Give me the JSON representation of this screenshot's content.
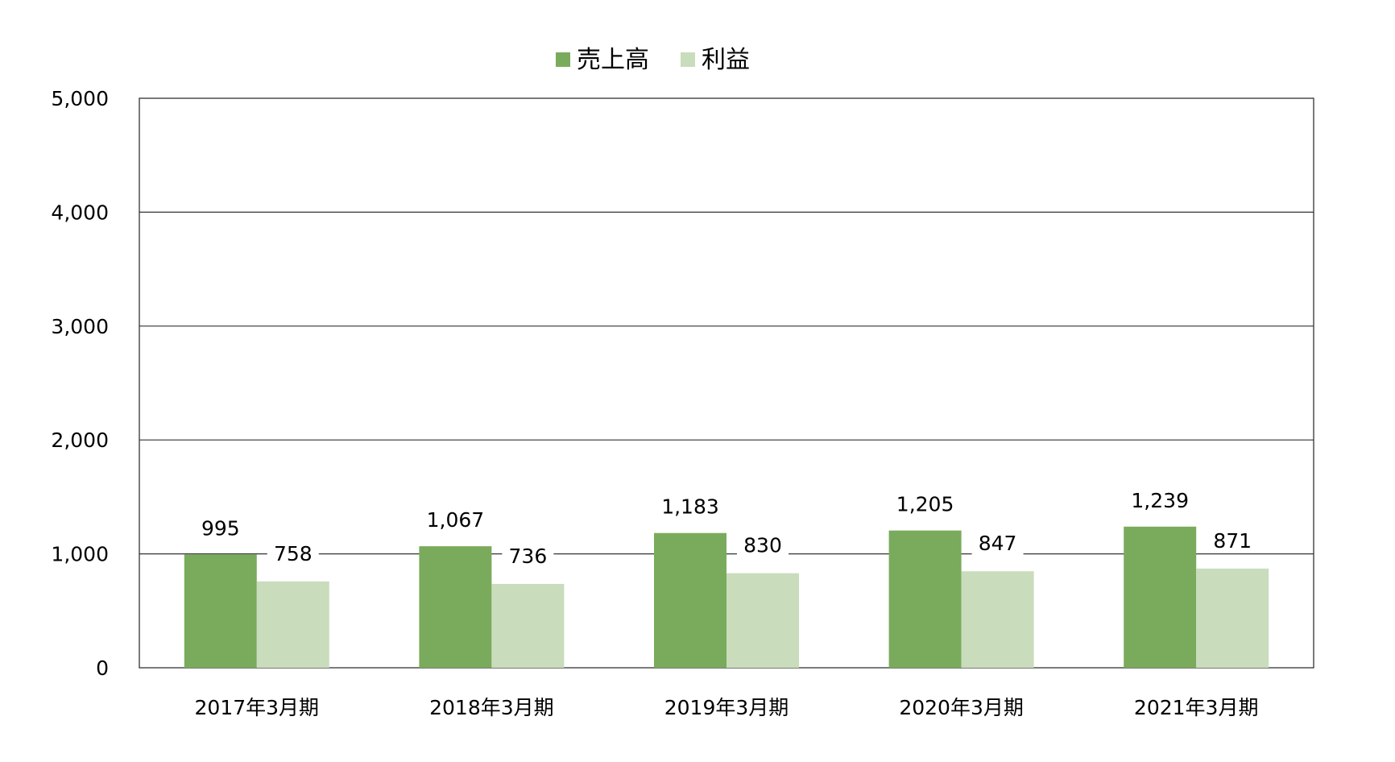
{
  "chart_data": {
    "type": "bar",
    "categories": [
      "2017年3月期",
      "2018年3月期",
      "2019年3月期",
      "2020年3月期",
      "2021年3月期"
    ],
    "series": [
      {
        "name": "売上高",
        "values": [
          995,
          1067,
          1183,
          1205,
          1239
        ],
        "color": "#7aab5c"
      },
      {
        "name": "利益",
        "values": [
          758,
          736,
          830,
          847,
          871
        ],
        "color": "#c9dcbc"
      }
    ],
    "y_ticks": [
      "0",
      "1,000",
      "2,000",
      "3,000",
      "4,000",
      "5,000"
    ],
    "ylim": [
      0,
      5000
    ],
    "grid": true,
    "legend_position": "top-center",
    "data_labels": {
      "売上高": [
        "995",
        "1,067",
        "1,183",
        "1,205",
        "1,239"
      ],
      "利益": [
        "758",
        "736",
        "830",
        "847",
        "871"
      ]
    }
  }
}
